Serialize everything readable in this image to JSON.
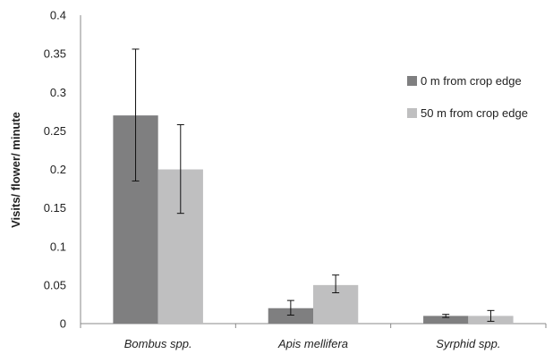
{
  "chart_data": {
    "type": "bar",
    "title": "",
    "xlabel": "",
    "ylabel": "Visits/ flower/ minute",
    "categories": [
      "Bombus spp.",
      "Apis mellifera",
      "Syrphid spp."
    ],
    "series": [
      {
        "name": "0 m from crop edge",
        "color": "#7f7f80",
        "values": [
          0.27,
          0.02,
          0.01
        ],
        "error_low": [
          0.185,
          0.011,
          0.008
        ],
        "error_high": [
          0.356,
          0.03,
          0.012
        ]
      },
      {
        "name": "50 m from crop edge",
        "color": "#bfbfc0",
        "values": [
          0.2,
          0.05,
          0.01
        ],
        "error_low": [
          0.143,
          0.04,
          0.003
        ],
        "error_high": [
          0.258,
          0.063,
          0.017
        ]
      }
    ],
    "ylim": [
      0,
      0.4
    ],
    "yticks": [
      "0",
      "0.05",
      "0.1",
      "0.15",
      "0.2",
      "0.25",
      "0.3",
      "0.35",
      "0.4"
    ],
    "legend_position": "right",
    "grid": false
  }
}
